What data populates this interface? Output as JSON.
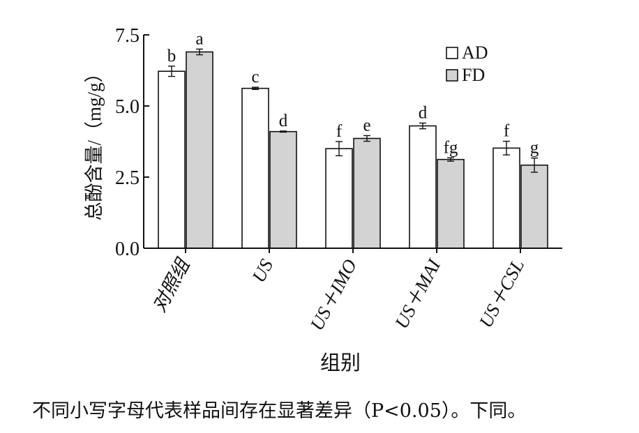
{
  "chart_data": {
    "type": "bar",
    "xlabel": "组别",
    "ylabel": "总酚含量/（mg/g）",
    "ylim": [
      0,
      7.5
    ],
    "yticks": [
      "0.0",
      "2.5",
      "5.0",
      "7.5"
    ],
    "categories": [
      "对照组",
      "US",
      "US＋IMO",
      "US＋MAI",
      "US＋CSL"
    ],
    "legend_position": "top-right",
    "series": [
      {
        "name": "AD",
        "color": "#ffffff",
        "values": [
          6.22,
          5.62,
          3.5,
          4.3,
          3.52
        ],
        "errors": [
          0.18,
          0.04,
          0.25,
          0.1,
          0.24
        ],
        "letters": [
          "b",
          "c",
          "f",
          "d",
          "f"
        ]
      },
      {
        "name": "FD",
        "color": "#d3d3d3",
        "values": [
          6.9,
          4.1,
          3.86,
          3.12,
          2.92
        ],
        "errors": [
          0.1,
          0.02,
          0.1,
          0.06,
          0.25
        ],
        "letters": [
          "a",
          "d",
          "e",
          "fg",
          "g"
        ]
      }
    ]
  },
  "note": "不同小写字母代表样品间存在显著差异（P<0.05）。下同。"
}
